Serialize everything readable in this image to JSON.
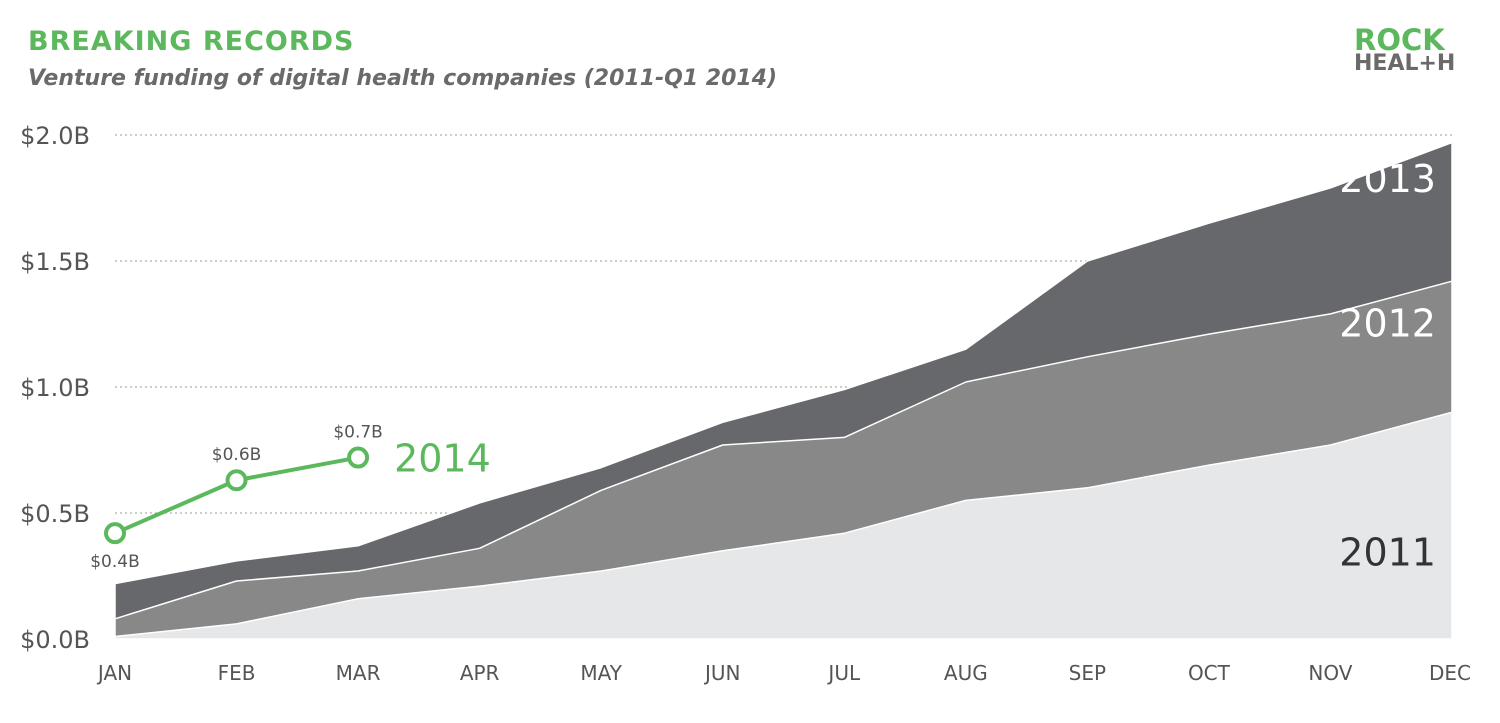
{
  "header": {
    "title": "BREAKING RECORDS",
    "subtitle": "Venture funding of digital health companies (2011-Q1 2014)"
  },
  "logo": {
    "line1": "ROCK",
    "line2": "HEAL+H"
  },
  "colors": {
    "accent": "#5cb85c",
    "series_2011": "#e6e7e8",
    "series_2012": "#888888",
    "series_2013": "#67686b",
    "text": "#555555"
  },
  "chart_data": {
    "type": "area",
    "stacked": true,
    "categories": [
      "JAN",
      "FEB",
      "MAR",
      "APR",
      "MAY",
      "JUN",
      "JUL",
      "AUG",
      "SEP",
      "OCT",
      "NOV",
      "DEC"
    ],
    "y_tick_labels": [
      "$0.0B",
      "$0.5B",
      "$1.0B",
      "$1.5B",
      "$2.0B"
    ],
    "y_ticks": [
      0,
      0.5,
      1.0,
      1.5,
      2.0
    ],
    "ylim": [
      0,
      2.0
    ],
    "grid": "horizontal dotted",
    "series": [
      {
        "name": "2011",
        "values": [
          0.01,
          0.06,
          0.16,
          0.21,
          0.27,
          0.35,
          0.42,
          0.55,
          0.6,
          0.69,
          0.77,
          0.9
        ]
      },
      {
        "name": "2012",
        "values": [
          0.08,
          0.23,
          0.27,
          0.36,
          0.59,
          0.77,
          0.8,
          1.02,
          1.12,
          1.21,
          1.29,
          1.42
        ]
      },
      {
        "name": "2013",
        "values": [
          0.22,
          0.31,
          0.37,
          0.54,
          0.68,
          0.86,
          0.99,
          1.15,
          1.5,
          1.65,
          1.79,
          1.97
        ]
      }
    ],
    "highlight_series": {
      "name": "2014",
      "categories": [
        "JAN",
        "FEB",
        "MAR"
      ],
      "values": [
        0.42,
        0.63,
        0.72
      ],
      "labels": [
        "$0.4B",
        "$0.6B",
        "$0.7B"
      ]
    }
  }
}
